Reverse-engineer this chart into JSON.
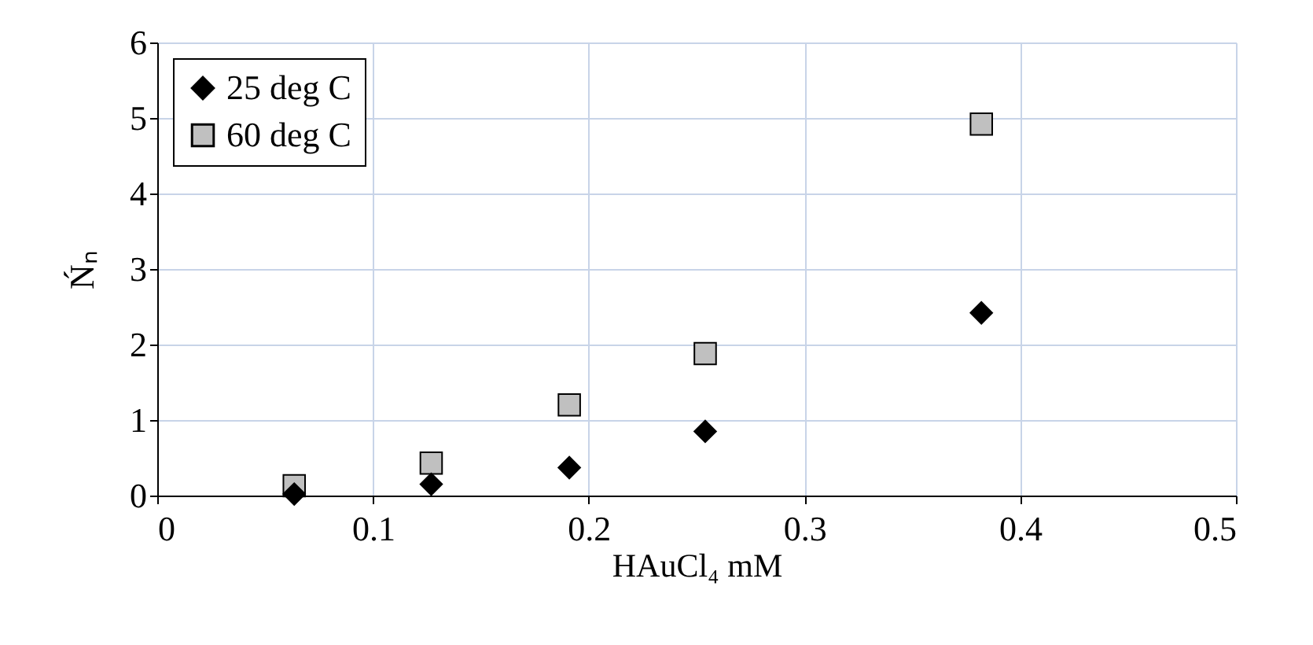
{
  "chart_data": {
    "type": "scatter",
    "xlabel": "HAuCl₄ mM",
    "ylabel": "Ńₙ",
    "x": [
      0.0635,
      0.127,
      0.191,
      0.254,
      0.382
    ],
    "series": [
      {
        "name": "25 deg C",
        "color": "#000000",
        "marker": "diamond",
        "values": [
          0.02,
          0.15,
          0.37,
          0.85,
          2.42
        ]
      },
      {
        "name": "60 deg C",
        "color": "#c0c0c0",
        "marker": "square",
        "values": [
          0.13,
          0.43,
          1.2,
          1.88,
          4.92
        ]
      }
    ],
    "xlim": [
      0,
      0.5
    ],
    "xticks": [
      0,
      0.1,
      0.2,
      0.3,
      0.4,
      0.5
    ],
    "ylim": [
      0,
      6
    ],
    "yticks": [
      0,
      1,
      2,
      3,
      4,
      5,
      6
    ],
    "grid": true,
    "legend": "top left"
  }
}
